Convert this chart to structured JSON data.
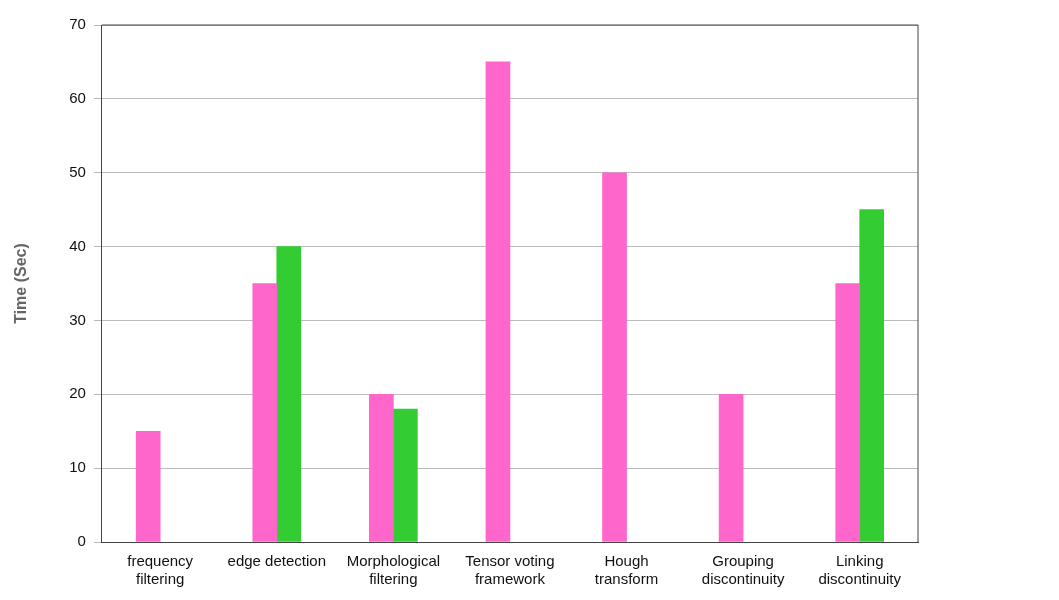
{
  "chart_data": {
    "type": "bar",
    "ylabel": "Time (Sec)",
    "categories": [
      "frequency filtering",
      "edge detection",
      "Morphological filtering",
      "Tensor voting framework",
      "Hough transform",
      "Grouping discontinuity",
      "Linking discontinuity"
    ],
    "series": [
      {
        "color": "#ff66cc",
        "values": [
          15,
          35,
          20,
          65,
          50,
          20,
          35
        ]
      },
      {
        "color": "#33cc33",
        "values": [
          null,
          40,
          18,
          null,
          null,
          null,
          45
        ]
      }
    ],
    "ylim": [
      0,
      70
    ],
    "yticks": [
      0,
      10,
      20,
      30,
      40,
      50,
      60,
      70
    ],
    "grid": "y"
  }
}
